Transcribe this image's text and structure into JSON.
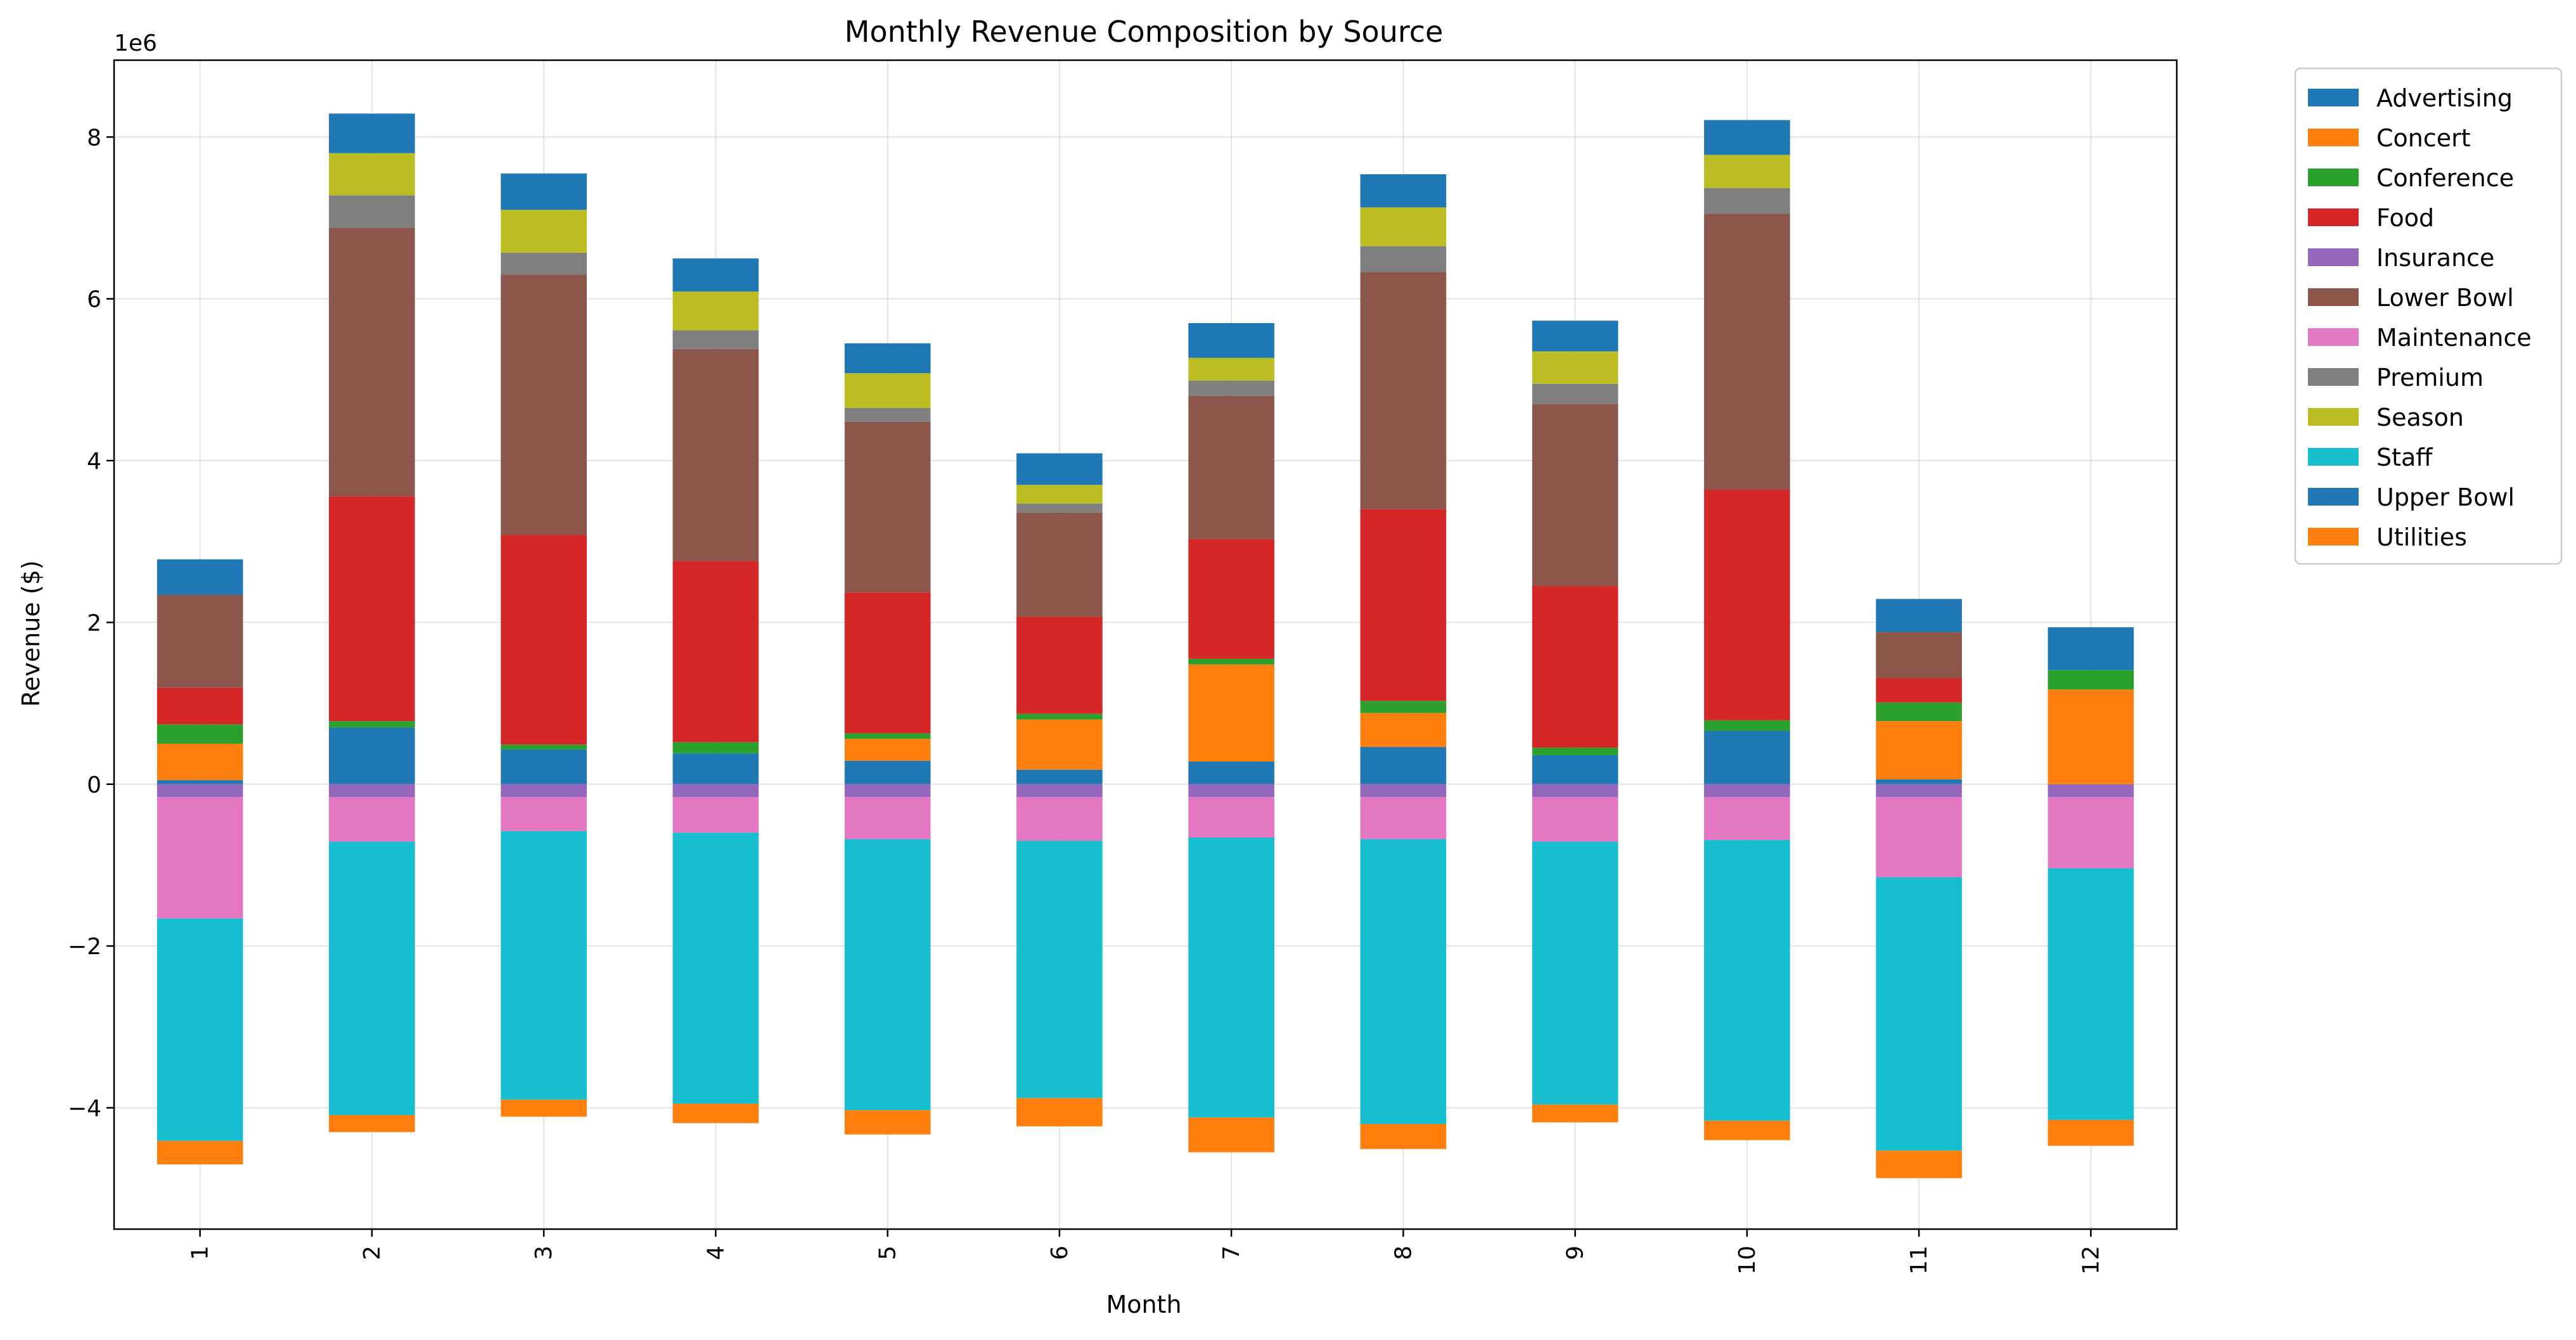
{
  "chart_data": {
    "type": "bar",
    "stacked": true,
    "title": "Monthly Revenue Composition by Source",
    "xlabel": "Month",
    "ylabel": "Revenue ($)",
    "y_scale_label": "1e6",
    "ylim": [
      -5500000,
      8950000
    ],
    "yticks": [
      -4000000,
      -2000000,
      0,
      2000000,
      4000000,
      6000000,
      8000000
    ],
    "ytick_labels": [
      "−4",
      "−2",
      "0",
      "2",
      "4",
      "6",
      "8"
    ],
    "grid": true,
    "legend_position": "outside-top-right",
    "categories": [
      "1",
      "2",
      "3",
      "4",
      "5",
      "6",
      "7",
      "8",
      "9",
      "10",
      "11",
      "12"
    ],
    "series": [
      {
        "name": "Advertising",
        "color": "#1f77b4",
        "values": [
          50000,
          700000,
          430000,
          380000,
          290000,
          180000,
          280000,
          460000,
          360000,
          660000,
          60000,
          0
        ]
      },
      {
        "name": "Concert",
        "color": "#ff7f0e",
        "values": [
          450000,
          0,
          0,
          0,
          270000,
          620000,
          1200000,
          420000,
          0,
          0,
          720000,
          1170000
        ]
      },
      {
        "name": "Conference",
        "color": "#2ca02c",
        "values": [
          240000,
          80000,
          60000,
          140000,
          70000,
          70000,
          70000,
          150000,
          90000,
          130000,
          230000,
          240000
        ]
      },
      {
        "name": "Food",
        "color": "#d62728",
        "values": [
          450000,
          2780000,
          2590000,
          2240000,
          1740000,
          1200000,
          1480000,
          2370000,
          2000000,
          2850000,
          300000,
          0
        ]
      },
      {
        "name": "Insurance",
        "color": "#9467bd",
        "values": [
          -160000,
          -160000,
          -160000,
          -160000,
          -160000,
          -160000,
          -160000,
          -160000,
          -160000,
          -160000,
          -160000,
          -160000
        ]
      },
      {
        "name": "Lower Bowl",
        "color": "#8c564b",
        "values": [
          1150000,
          3320000,
          3220000,
          2620000,
          2110000,
          1290000,
          1770000,
          2930000,
          2250000,
          3410000,
          570000,
          0
        ]
      },
      {
        "name": "Maintenance",
        "color": "#e377c2",
        "values": [
          -1500000,
          -550000,
          -420000,
          -440000,
          -520000,
          -540000,
          -500000,
          -520000,
          -550000,
          -530000,
          -990000,
          -880000
        ]
      },
      {
        "name": "Premium",
        "color": "#7f7f7f",
        "values": [
          0,
          400000,
          270000,
          230000,
          170000,
          110000,
          190000,
          320000,
          250000,
          320000,
          0,
          0
        ]
      },
      {
        "name": "Season",
        "color": "#bcbd22",
        "values": [
          0,
          520000,
          530000,
          480000,
          430000,
          230000,
          280000,
          480000,
          400000,
          410000,
          0,
          0
        ]
      },
      {
        "name": "Staff",
        "color": "#17becf",
        "values": [
          -2750000,
          -3380000,
          -3320000,
          -3350000,
          -3350000,
          -3180000,
          -3460000,
          -3520000,
          -3250000,
          -3470000,
          -3380000,
          -3110000
        ]
      },
      {
        "name": "Upper Bowl",
        "color": "#1f77b4",
        "values": [
          440000,
          490000,
          450000,
          410000,
          370000,
          390000,
          430000,
          410000,
          380000,
          430000,
          410000,
          530000
        ]
      },
      {
        "name": "Utilities",
        "color": "#ff7f0e",
        "values": [
          -290000,
          -210000,
          -210000,
          -240000,
          -300000,
          -350000,
          -430000,
          -310000,
          -220000,
          -240000,
          -340000,
          -320000
        ]
      }
    ]
  }
}
